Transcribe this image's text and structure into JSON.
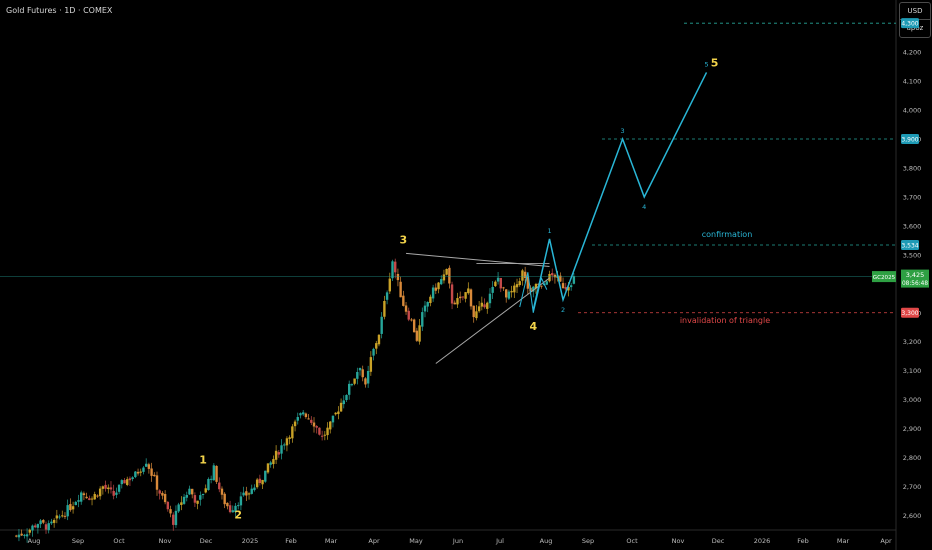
{
  "header": {
    "title": "Gold Futures · 1D · COMEX"
  },
  "currency": {
    "code": "USD",
    "setting": "apoz"
  },
  "colors": {
    "bg": "#000000",
    "up": "#26a69a",
    "up_alt": "#c9a227",
    "wave": "#29b6d6",
    "triangle": "#a8a8a8",
    "label": "#f2d34a",
    "level_line": "#26a69a",
    "invalidation": "#e04848",
    "price": "#2ea043"
  },
  "chart_data": {
    "type": "candlestick",
    "instrument": "GC2025",
    "x_ticks": [
      "Aug",
      "Sep",
      "Oct",
      "Nov",
      "Dec",
      "2025",
      "Feb",
      "Mar",
      "Apr",
      "May",
      "Jun",
      "Jul",
      "Aug",
      "Sep",
      "Oct",
      "Nov",
      "Dec",
      "2026",
      "Feb",
      "Mar",
      "Apr"
    ],
    "y_ticks": [
      "4,200",
      "4,100",
      "4,000",
      "3,900",
      "3,800",
      "3,700",
      "3,600",
      "3,500",
      "3,400",
      "3,300",
      "3,200",
      "3,100",
      "3,000",
      "2,900",
      "2,800",
      "2,700",
      "2,600"
    ],
    "ylim": [
      2550,
      4380
    ],
    "current": {
      "symbol": "GC2025",
      "price": "3,425",
      "countdown": "08:56:48"
    },
    "levels": [
      {
        "value": 4300,
        "label": "4,300",
        "text": ""
      },
      {
        "value": 3900,
        "label": "3,900",
        "text": ""
      },
      {
        "value": 3534,
        "label": "3,534",
        "text": "confirmation"
      },
      {
        "value": 3300,
        "label": "3,300",
        "text": "invalidation of triangle"
      }
    ],
    "price_path": [
      [
        0,
        2530
      ],
      [
        4,
        2545
      ],
      [
        8,
        2575
      ],
      [
        12,
        2560
      ],
      [
        16,
        2595
      ],
      [
        20,
        2630
      ],
      [
        24,
        2680
      ],
      [
        28,
        2660
      ],
      [
        32,
        2700
      ],
      [
        36,
        2670
      ],
      [
        40,
        2720
      ],
      [
        44,
        2740
      ],
      [
        48,
        2790
      ],
      [
        52,
        2700
      ],
      [
        56,
        2620
      ],
      [
        58,
        2580
      ],
      [
        61,
        2650
      ],
      [
        64,
        2690
      ],
      [
        67,
        2640
      ],
      [
        70,
        2700
      ],
      [
        73,
        2760
      ],
      [
        76,
        2660
      ],
      [
        79,
        2620
      ],
      [
        82,
        2650
      ],
      [
        86,
        2680
      ],
      [
        90,
        2720
      ],
      [
        94,
        2780
      ],
      [
        98,
        2840
      ],
      [
        102,
        2900
      ],
      [
        106,
        2960
      ],
      [
        110,
        2920
      ],
      [
        113,
        2870
      ],
      [
        116,
        2910
      ],
      [
        120,
        2990
      ],
      [
        124,
        3060
      ],
      [
        127,
        3120
      ],
      [
        129,
        3040
      ],
      [
        131,
        3140
      ],
      [
        134,
        3230
      ],
      [
        137,
        3380
      ],
      [
        139,
        3480
      ],
      [
        141,
        3400
      ],
      [
        143,
        3330
      ],
      [
        146,
        3270
      ],
      [
        148,
        3210
      ],
      [
        150,
        3290
      ],
      [
        153,
        3360
      ],
      [
        156,
        3400
      ],
      [
        159,
        3440
      ],
      [
        161,
        3340
      ],
      [
        164,
        3340
      ],
      [
        167,
        3380
      ],
      [
        169,
        3290
      ],
      [
        172,
        3320
      ],
      [
        175,
        3360
      ],
      [
        178,
        3420
      ],
      [
        181,
        3350
      ],
      [
        184,
        3380
      ],
      [
        187,
        3440
      ],
      [
        190,
        3360
      ],
      [
        192,
        3400
      ],
      [
        194,
        3380
      ],
      [
        196,
        3420
      ],
      [
        199,
        3430
      ],
      [
        201,
        3400
      ],
      [
        203,
        3390
      ],
      [
        206,
        3420
      ]
    ],
    "triangle": {
      "upper": [
        [
          144,
          3505
        ],
        [
          197,
          3460
        ]
      ],
      "lower": [
        [
          155,
          3125
        ],
        [
          197,
          3420
        ]
      ],
      "upper_ext": [
        [
          170,
          3470
        ],
        [
          197,
          3470
        ]
      ]
    },
    "wave_projection": [
      {
        "x": 191,
        "y": 3310,
        "label": ""
      },
      {
        "x": 197,
        "y": 3555,
        "label": "1"
      },
      {
        "x": 202,
        "y": 3345,
        "label": "2"
      },
      {
        "x": 224,
        "y": 3900,
        "label": "3"
      },
      {
        "x": 232,
        "y": 3700,
        "label": "4"
      },
      {
        "x": 255,
        "y": 4130,
        "label": "5"
      }
    ],
    "annotations": [
      {
        "label": "1",
        "x": 69,
        "y": 2780
      },
      {
        "label": "2",
        "x": 82,
        "y": 2590
      },
      {
        "label": "3",
        "x": 143,
        "y": 3540
      },
      {
        "label": "4",
        "x": 191,
        "y": 3240
      },
      {
        "label": "5",
        "x": 258,
        "y": 4150
      }
    ],
    "x_range": [
      -6,
      325
    ]
  }
}
